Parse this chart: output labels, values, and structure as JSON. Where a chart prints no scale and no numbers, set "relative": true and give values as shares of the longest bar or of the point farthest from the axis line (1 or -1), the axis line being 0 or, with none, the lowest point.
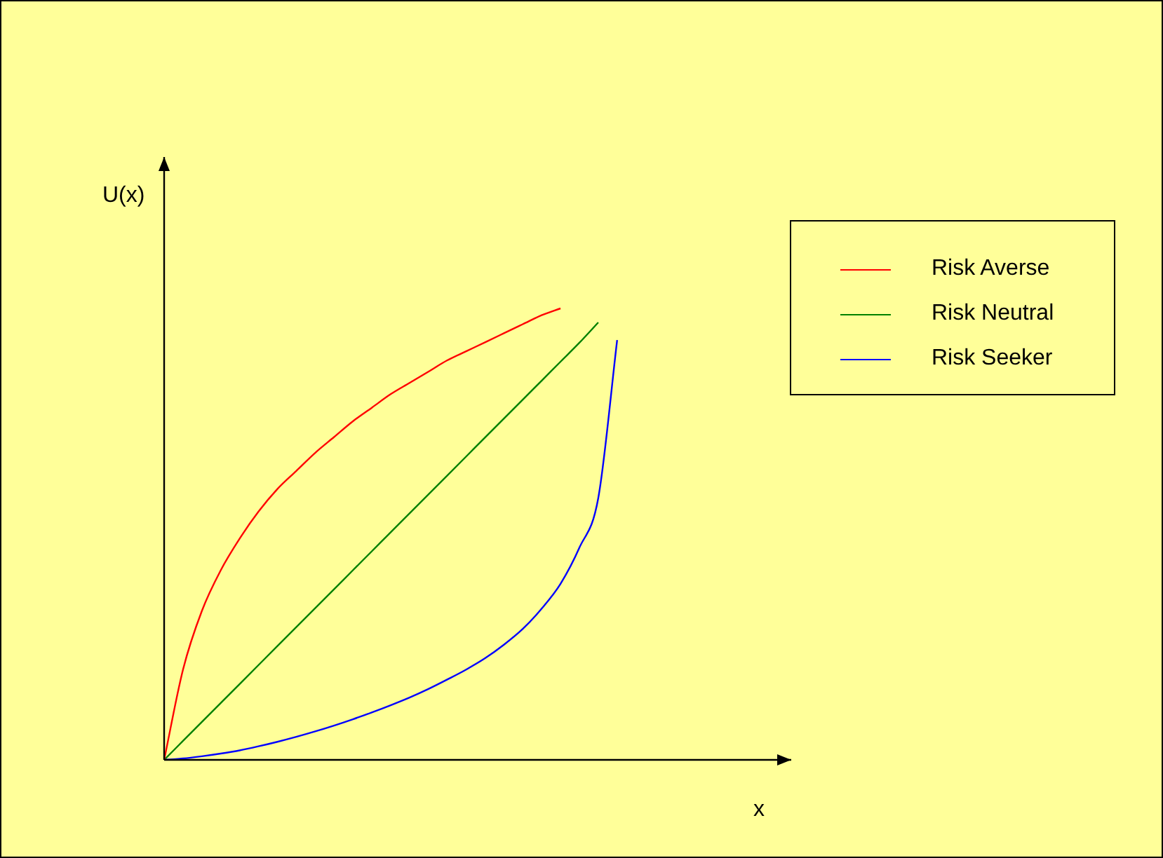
{
  "chart_data": {
    "type": "line",
    "relative": true,
    "xlabel": "x",
    "ylabel": "U(x)",
    "grid": false,
    "legend": "top right",
    "marker": "none",
    "line_style": "solid",
    "categories": [
      null,
      null,
      null,
      null,
      null,
      null,
      null,
      null,
      null,
      null,
      null,
      null,
      null,
      null,
      null,
      null,
      null,
      null,
      null,
      null,
      null,
      null,
      null,
      null,
      null,
      null,
      null,
      null,
      null,
      null,
      null,
      null,
      null,
      null
    ],
    "series": [
      {
        "name": "Risk Averse",
        "color": "#ff0000",
        "values": [
          0,
          0.2,
          0.33,
          0.42,
          0.49,
          0.55,
          0.6,
          0.64,
          0.68,
          0.715,
          0.75,
          0.78,
          0.81,
          0.835,
          0.86,
          0.885,
          0.905,
          0.925,
          0.945,
          0.965,
          0.985,
          1,
          null,
          null,
          null,
          null,
          null,
          null,
          null,
          null,
          null,
          null,
          null,
          null
        ]
      },
      {
        "name": "Risk Neutral",
        "color": "#008000",
        "values": [
          0,
          0.042,
          0.084,
          0.126,
          0.168,
          0.21,
          0.252,
          0.294,
          0.336,
          0.378,
          0.42,
          0.462,
          0.504,
          0.546,
          0.588,
          0.63,
          0.672,
          0.714,
          0.756,
          0.798,
          0.84,
          0.882,
          0.924,
          0.969,
          null,
          null,
          null,
          null,
          null,
          null,
          null,
          null,
          null,
          null
        ]
      },
      {
        "name": "Risk Seeker",
        "color": "#0000ff",
        "values": [
          0,
          0.003,
          0.008,
          0.014,
          0.021,
          0.03,
          0.04,
          0.051,
          0.063,
          0.076,
          0.09,
          0.105,
          0.121,
          0.138,
          0.157,
          0.178,
          0.2,
          0.225,
          0.255,
          0.29,
          0.335,
          0.39,
          0.47,
          0.58,
          0.93,
          null,
          null,
          null,
          null,
          null,
          null,
          null,
          null,
          null
        ]
      }
    ]
  }
}
